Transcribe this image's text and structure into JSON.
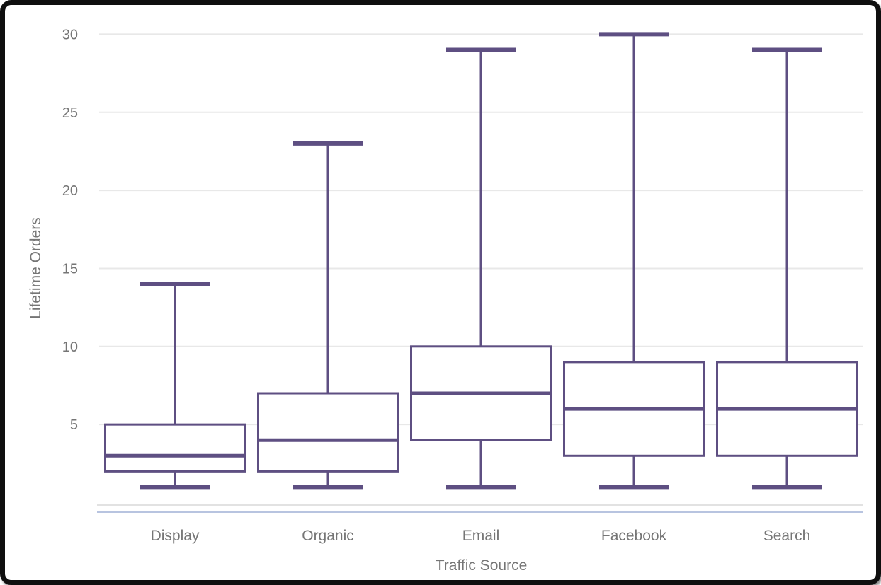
{
  "chart_data": {
    "type": "boxplot",
    "title": "",
    "xlabel": "Traffic Source",
    "ylabel": "Lifetime Orders",
    "categories": [
      "Display",
      "Organic",
      "Email",
      "Facebook",
      "Search"
    ],
    "series": [
      {
        "name": "Display",
        "min": 1,
        "q1": 2,
        "median": 3,
        "q3": 5,
        "max": 14
      },
      {
        "name": "Organic",
        "min": 1,
        "q1": 2,
        "median": 4,
        "q3": 7,
        "max": 23
      },
      {
        "name": "Email",
        "min": 1,
        "q1": 4,
        "median": 7,
        "q3": 10,
        "max": 29
      },
      {
        "name": "Facebook",
        "min": 1,
        "q1": 3,
        "median": 6,
        "q3": 9,
        "max": 30
      },
      {
        "name": "Search",
        "min": 1,
        "q1": 3,
        "median": 6,
        "q3": 9,
        "max": 29
      }
    ],
    "yticks": [
      5,
      10,
      15,
      20,
      25,
      30
    ],
    "ylim": [
      0,
      30.5
    ],
    "grid": "horizontal",
    "legend": "none",
    "colors": {
      "box_stroke": "#5e4f82",
      "box_fill": "#ffffff",
      "gridline": "#e8e8e8",
      "axis_text": "#757575",
      "baseline_top": "#e2e2e2",
      "baseline_bottom": "#b8c4e0"
    }
  }
}
